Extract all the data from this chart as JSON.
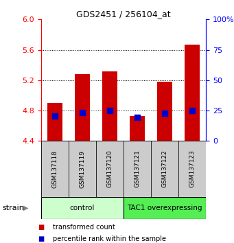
{
  "title": "GDS2451 / 256104_at",
  "samples": [
    "GSM137118",
    "GSM137119",
    "GSM137120",
    "GSM137121",
    "GSM137122",
    "GSM137123"
  ],
  "red_values": [
    4.9,
    5.28,
    5.32,
    4.73,
    5.18,
    5.67
  ],
  "blue_values": [
    4.73,
    4.77,
    4.8,
    4.71,
    4.76,
    4.8
  ],
  "y_min": 4.4,
  "y_max": 6.0,
  "y_ticks_left": [
    4.4,
    4.8,
    5.2,
    5.6,
    6.0
  ],
  "y_ticks_right": [
    0,
    25,
    50,
    75,
    100
  ],
  "groups": [
    {
      "label": "control",
      "indices": [
        0,
        1,
        2
      ],
      "color": "#ccffcc"
    },
    {
      "label": "TAC1 overexpressing",
      "indices": [
        3,
        4,
        5
      ],
      "color": "#55ee55"
    }
  ],
  "strain_label": "strain",
  "legend_items": [
    {
      "color": "#cc0000",
      "label": "transformed count"
    },
    {
      "color": "#0000cc",
      "label": "percentile rank within the sample"
    }
  ],
  "bar_color": "#cc0000",
  "dot_color": "#0000cc",
  "bar_width": 0.55,
  "dot_size": 35,
  "sample_bg_color": "#cccccc",
  "grid_ticks": [
    4.8,
    5.2,
    5.6
  ]
}
